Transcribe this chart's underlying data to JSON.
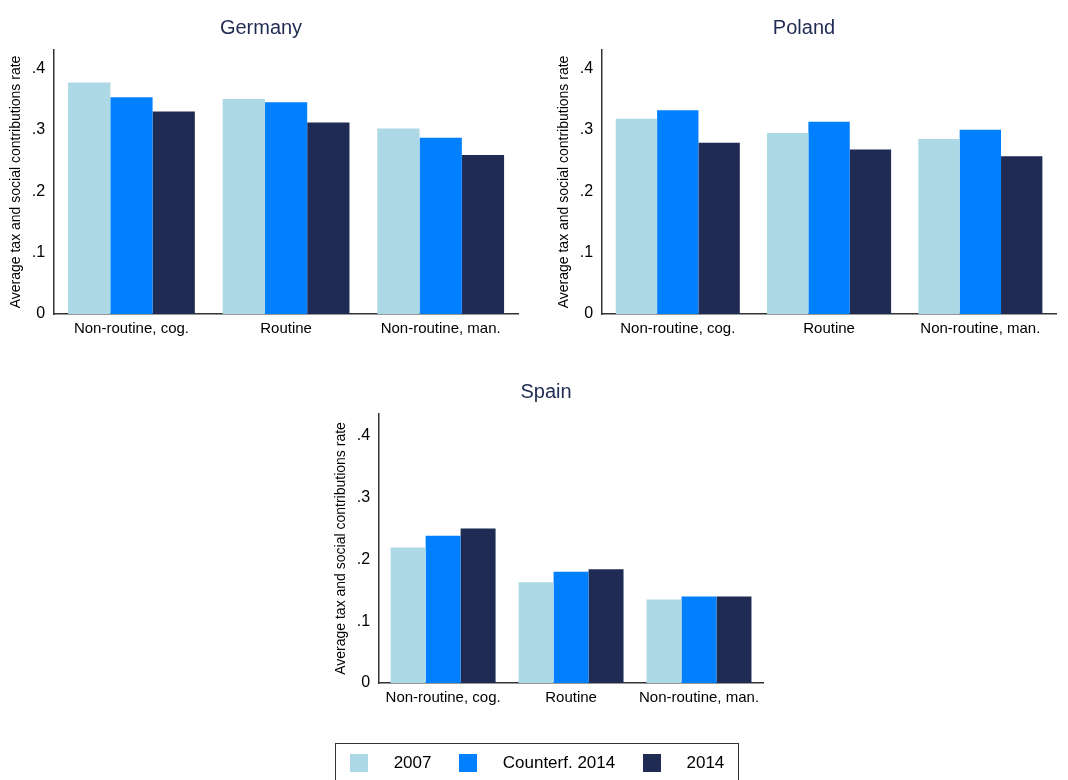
{
  "chart_data": [
    {
      "type": "bar",
      "title": "Germany",
      "ylabel": "Average tax and social contributions rate",
      "categories": [
        "Non-routine, cog.",
        "Routine",
        "Non-routine, man."
      ],
      "series": [
        {
          "color": "#add8e6",
          "values": [
            0.377,
            0.35,
            0.302
          ]
        },
        {
          "color": "#0080ff",
          "values": [
            0.353,
            0.345,
            0.287
          ]
        },
        {
          "color": "#1f2b52",
          "values": [
            0.33,
            0.312,
            0.259
          ]
        }
      ],
      "ylim": [
        0,
        0.43
      ],
      "yticks": [
        {
          "value": 0,
          "label": "0"
        },
        {
          "value": 0.1,
          "label": ".1"
        },
        {
          "value": 0.2,
          "label": ".2"
        },
        {
          "value": 0.3,
          "label": ".3"
        },
        {
          "value": 0.4,
          "label": ".4"
        }
      ],
      "grid": false,
      "legend": false
    },
    {
      "type": "bar",
      "title": "Poland",
      "ylabel": "Average tax and social contributions rate",
      "categories": [
        "Non-routine, cog.",
        "Routine",
        "Non-routine, man."
      ],
      "series": [
        {
          "color": "#add8e6",
          "values": [
            0.318,
            0.295,
            0.285
          ]
        },
        {
          "color": "#0080ff",
          "values": [
            0.332,
            0.313,
            0.3
          ]
        },
        {
          "color": "#1f2b52",
          "values": [
            0.279,
            0.268,
            0.257
          ]
        }
      ],
      "ylim": [
        0,
        0.43
      ],
      "yticks": [
        {
          "value": 0,
          "label": "0"
        },
        {
          "value": 0.1,
          "label": ".1"
        },
        {
          "value": 0.2,
          "label": ".2"
        },
        {
          "value": 0.3,
          "label": ".3"
        },
        {
          "value": 0.4,
          "label": ".4"
        }
      ],
      "grid": false,
      "legend": false
    },
    {
      "type": "bar",
      "title": "Spain",
      "ylabel": "Average tax and social contributions rate",
      "categories": [
        "Non-routine, cog.",
        "Routine",
        "Non-routine, man."
      ],
      "series": [
        {
          "name": "2007",
          "color": "#add8e6",
          "values": [
            0.219,
            0.163,
            0.135
          ]
        },
        {
          "name": "Counterf. 2014",
          "color": "#0080ff",
          "values": [
            0.238,
            0.18,
            0.14
          ]
        },
        {
          "name": "2014",
          "color": "#1f2b52",
          "values": [
            0.25,
            0.184,
            0.14
          ]
        }
      ],
      "ylim": [
        0,
        0.435
      ],
      "yticks": [
        {
          "value": 0,
          "label": "0"
        },
        {
          "value": 0.1,
          "label": ".1"
        },
        {
          "value": 0.2,
          "label": ".2"
        },
        {
          "value": 0.3,
          "label": ".3"
        },
        {
          "value": 0.4,
          "label": ".4"
        }
      ],
      "grid": false,
      "legend": "bottom"
    }
  ]
}
